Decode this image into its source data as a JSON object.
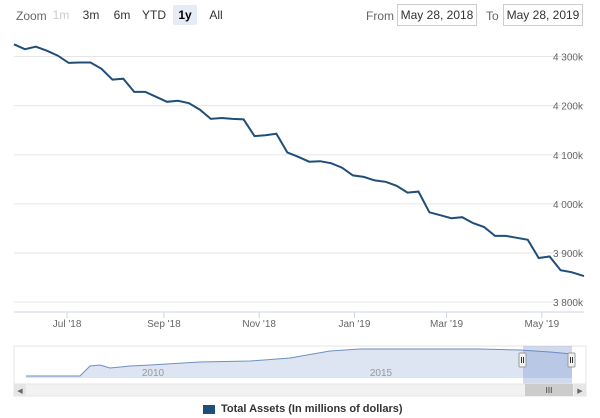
{
  "toolbar": {
    "zoom_label": "Zoom",
    "zoom_buttons": [
      {
        "label": "1m",
        "state": "disabled"
      },
      {
        "label": "3m",
        "state": "normal"
      },
      {
        "label": "6m",
        "state": "normal"
      },
      {
        "label": "YTD",
        "state": "normal"
      },
      {
        "label": "1y",
        "state": "active"
      },
      {
        "label": "All",
        "state": "normal"
      }
    ],
    "from_label": "From",
    "from_value": "May 28, 2018",
    "to_label": "To",
    "to_value": "May 28, 2019"
  },
  "chart_data": {
    "type": "line",
    "title": "",
    "xlabel": "",
    "ylabel": "",
    "grid": true,
    "y_ticks": [
      "4 300k",
      "4 200k",
      "4 100k",
      "4 000k",
      "3 900k",
      "3 800k"
    ],
    "x_ticks": [
      "Jul '18",
      "Sep '18",
      "Nov '18",
      "Jan '19",
      "Mar '19",
      "May '19"
    ],
    "ylim": [
      3780,
      4350
    ],
    "xlim": [
      "2018-05-28",
      "2019-05-28"
    ],
    "series": [
      {
        "name": "Total Assets (In millions of dollars)",
        "color": "#1f4e79",
        "x": [
          "2018-05-28",
          "2018-06-04",
          "2018-06-11",
          "2018-06-18",
          "2018-06-25",
          "2018-07-02",
          "2018-07-09",
          "2018-07-16",
          "2018-07-23",
          "2018-07-30",
          "2018-08-06",
          "2018-08-13",
          "2018-08-20",
          "2018-08-27",
          "2018-09-03",
          "2018-09-10",
          "2018-09-17",
          "2018-09-24",
          "2018-10-01",
          "2018-10-08",
          "2018-10-15",
          "2018-10-22",
          "2018-10-29",
          "2018-11-05",
          "2018-11-12",
          "2018-11-19",
          "2018-11-26",
          "2018-12-03",
          "2018-12-10",
          "2018-12-17",
          "2018-12-24",
          "2018-12-31",
          "2019-01-07",
          "2019-01-14",
          "2019-01-21",
          "2019-01-28",
          "2019-02-04",
          "2019-02-11",
          "2019-02-18",
          "2019-02-25",
          "2019-03-04",
          "2019-03-11",
          "2019-03-18",
          "2019-03-25",
          "2019-04-01",
          "2019-04-08",
          "2019-04-15",
          "2019-04-22",
          "2019-04-29",
          "2019-05-06",
          "2019-05-13",
          "2019-05-20",
          "2019-05-28"
        ],
        "values": [
          4325,
          4315,
          4320,
          4312,
          4302,
          4287,
          4288,
          4288,
          4275,
          4253,
          4255,
          4228,
          4228,
          4218,
          4208,
          4210,
          4205,
          4192,
          4173,
          4175,
          4173,
          4172,
          4138,
          4140,
          4143,
          4105,
          4096,
          4086,
          4087,
          4083,
          4074,
          4058,
          4055,
          4048,
          4045,
          4037,
          4023,
          4025,
          3983,
          3977,
          3971,
          3973,
          3961,
          3953,
          3935,
          3935,
          3931,
          3927,
          3890,
          3893,
          3865,
          3861,
          3853
        ]
      }
    ]
  },
  "navigator": {
    "labels": [
      "2010",
      "2015"
    ],
    "scroll_grip": "III",
    "left_arrow": "◀",
    "right_arrow": "▶"
  },
  "legend": {
    "label": "Total Assets (In millions of dollars)",
    "color": "#1f4e79"
  }
}
